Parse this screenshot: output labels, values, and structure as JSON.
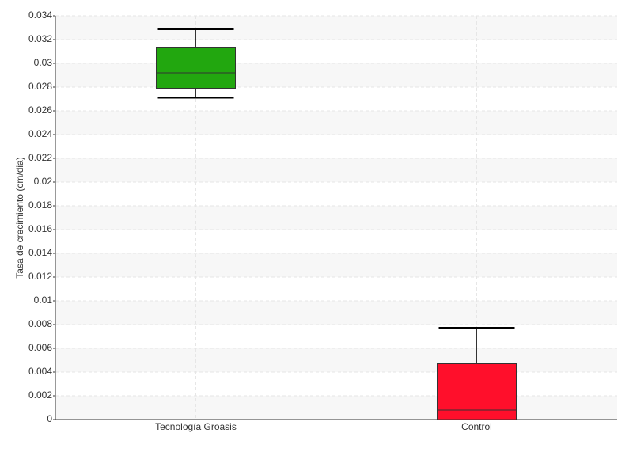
{
  "chart_data": {
    "type": "box",
    "y_label": "Tasa de crecimiento (cm/dia)",
    "categories": [
      "Tecnología Groasis",
      "Control"
    ],
    "colors": [
      "#22a70f",
      "#ff0f2b"
    ],
    "min": [
      0.0271,
      0
    ],
    "q1": [
      0.0279,
      0
    ],
    "median": [
      0.0292,
      0.0008
    ],
    "q3": [
      0.0313,
      0.0047
    ],
    "max": [
      0.0329,
      0.0077
    ],
    "ylim": [
      0,
      0.034
    ],
    "yticks": [
      0,
      0.002,
      0.004,
      0.006,
      0.008,
      0.01,
      0.012,
      0.014,
      0.016,
      0.018,
      0.02,
      0.022,
      0.024,
      0.026,
      0.028,
      0.03,
      0.032,
      0.034
    ],
    "grid": true
  }
}
